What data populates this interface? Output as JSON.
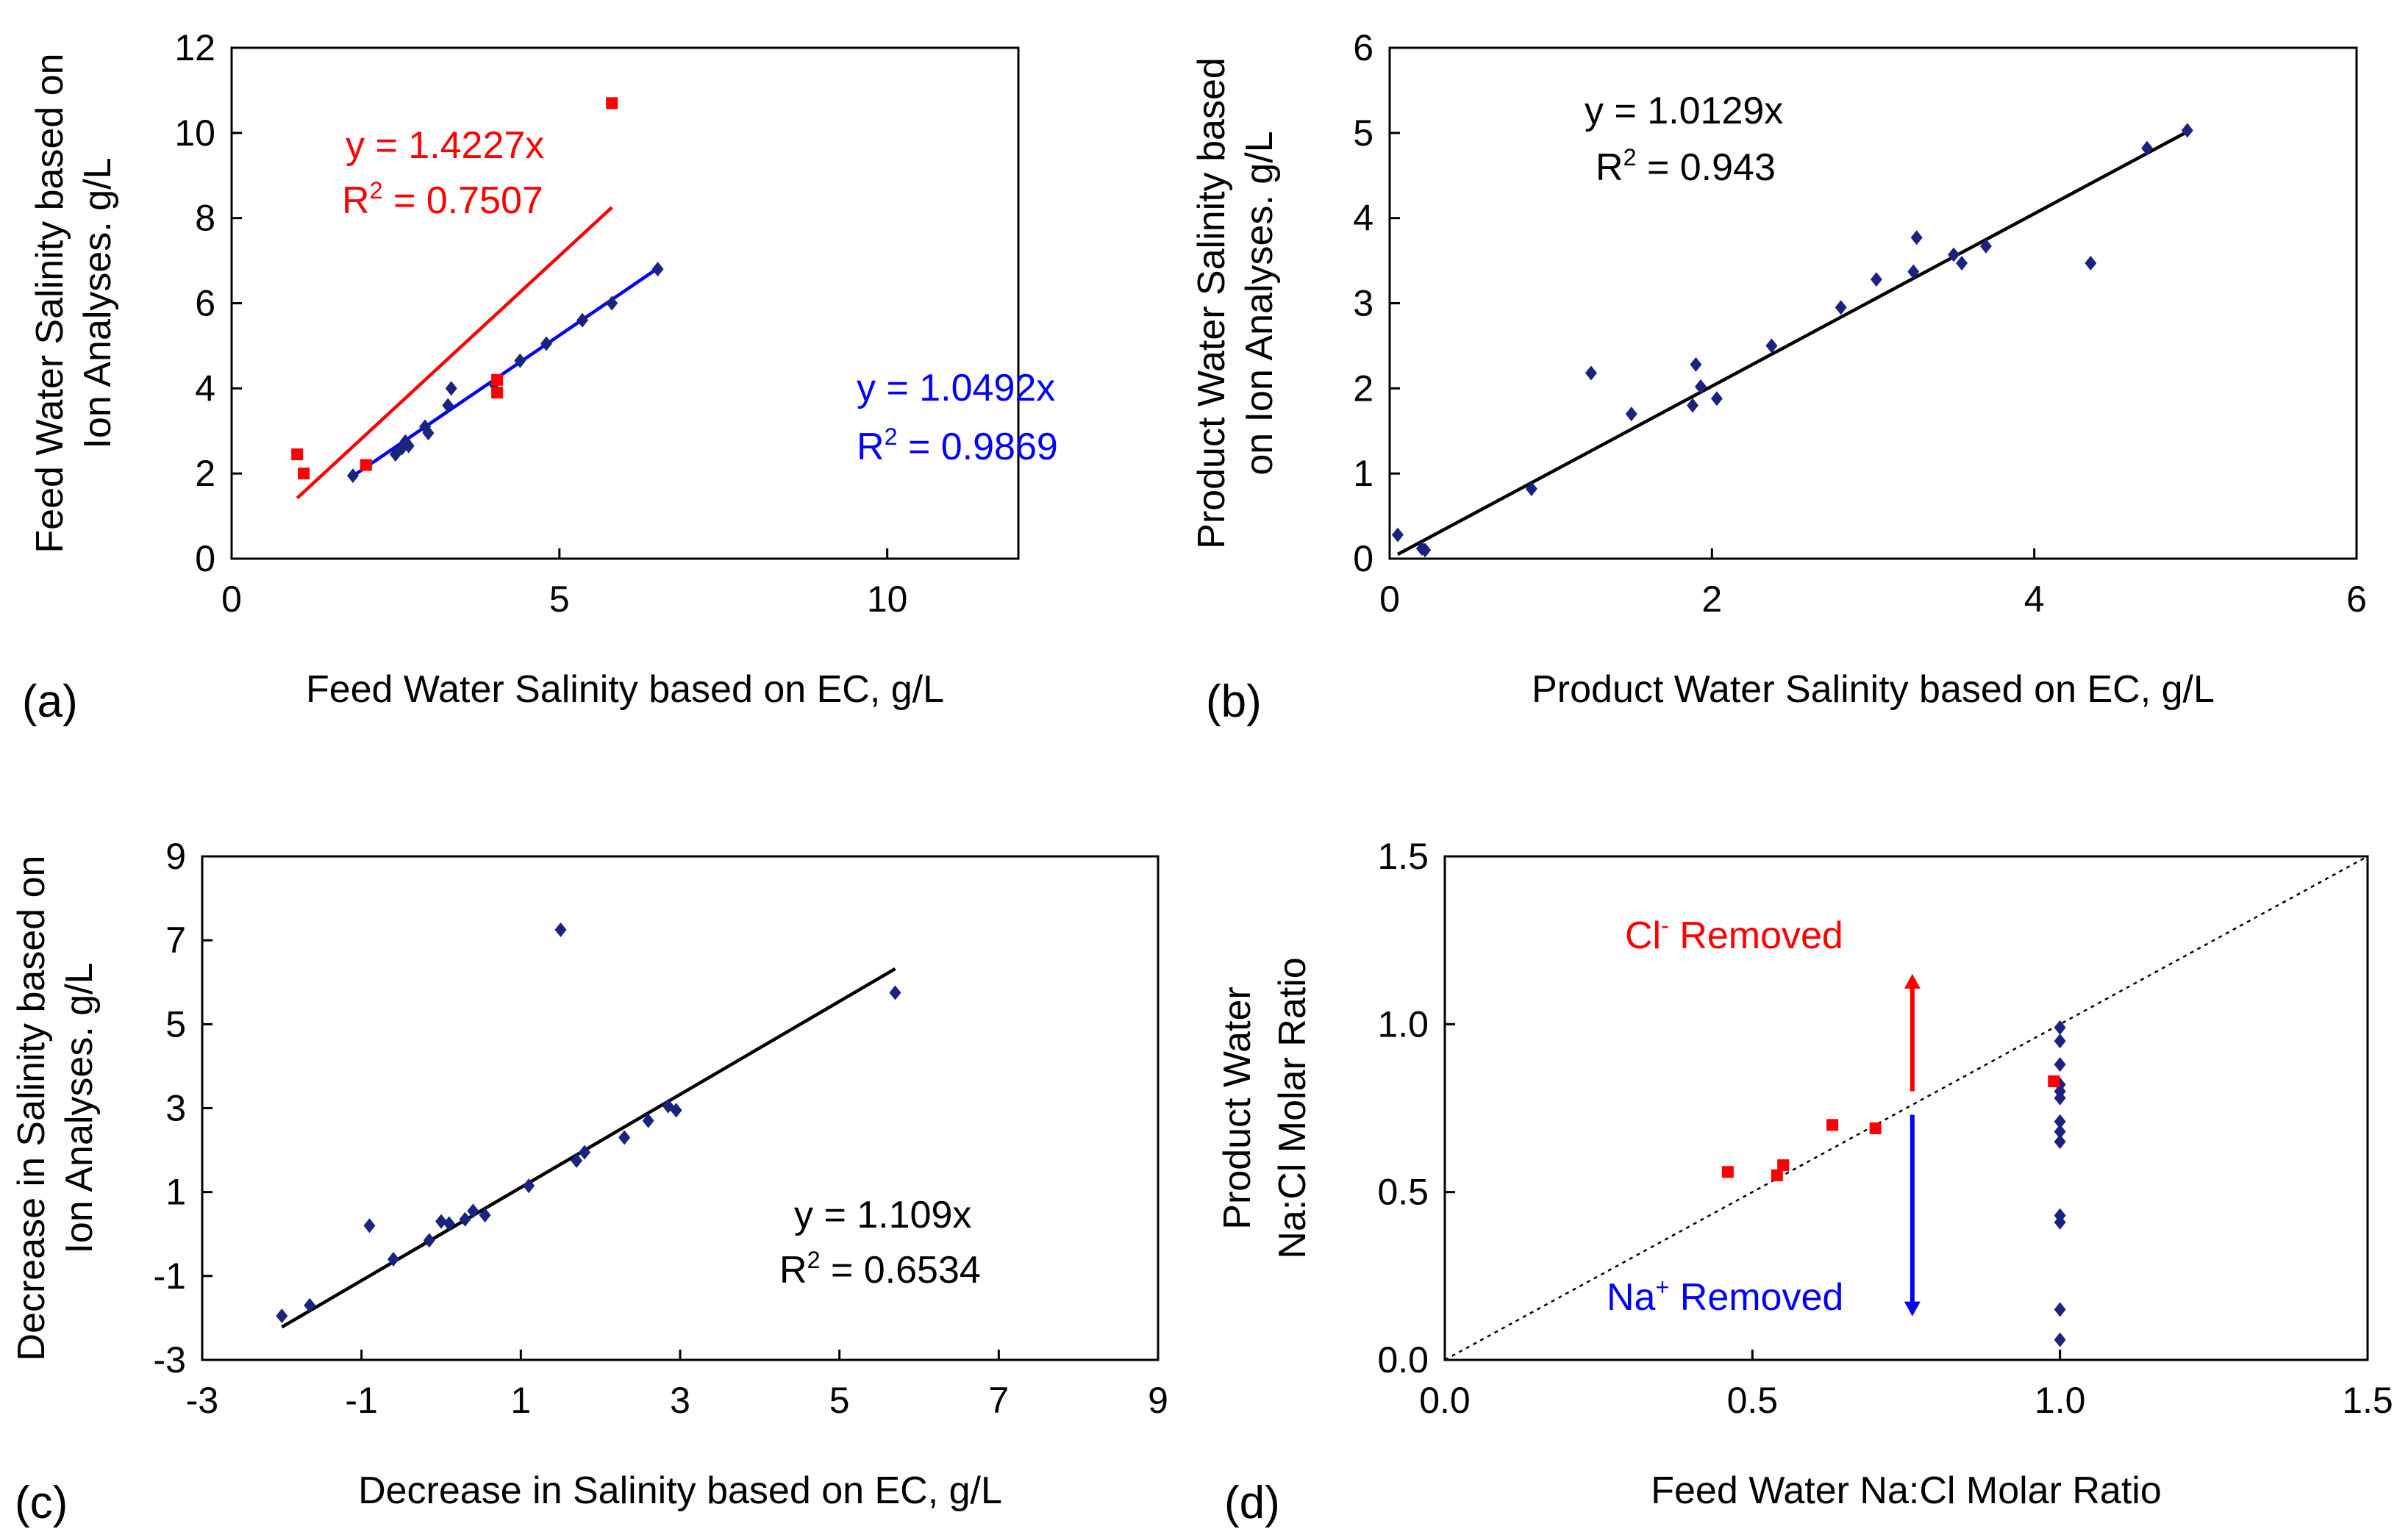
{
  "figure": {
    "layout": "2x2 grid of scatter plots"
  },
  "colors": {
    "series": "#1a237e",
    "red": "#ff0000",
    "blue": "#0000ff",
    "line": "#000000",
    "axis": "#000000"
  },
  "chart_data": [
    {
      "id": "a",
      "type": "scatter",
      "panel_label": "(a)",
      "xlabel": "Feed Water Salinity based on EC, g/L",
      "ylabel_lines": [
        "Feed Water Salinity based on",
        "Ion Analyses. g/L"
      ],
      "xlim": [
        0,
        12
      ],
      "ylim": [
        0,
        12
      ],
      "xticks": [
        0,
        5,
        10
      ],
      "yticks": [
        0,
        2,
        4,
        6,
        8,
        10,
        12
      ],
      "series": [
        {
          "name": "blue series",
          "color": "#1a237e",
          "marker": "diamond",
          "points": [
            [
              1.85,
              1.95
            ],
            [
              2.5,
              2.45
            ],
            [
              2.6,
              2.6
            ],
            [
              2.65,
              2.75
            ],
            [
              2.7,
              2.65
            ],
            [
              2.95,
              3.1
            ],
            [
              3.0,
              2.95
            ],
            [
              3.3,
              3.6
            ],
            [
              3.35,
              4.0
            ],
            [
              4.0,
              4.1
            ],
            [
              4.4,
              4.65
            ],
            [
              4.8,
              5.05
            ],
            [
              5.35,
              5.6
            ],
            [
              5.8,
              6.0
            ],
            [
              6.5,
              6.8
            ]
          ],
          "fit": {
            "slope": 1.0492,
            "x_range": [
              1.85,
              6.5
            ],
            "color": "#0000ff"
          }
        },
        {
          "name": "red series",
          "color": "#ff0000",
          "marker": "square",
          "points": [
            [
              1.0,
              2.45
            ],
            [
              1.1,
              2.0
            ],
            [
              2.05,
              2.2
            ],
            [
              4.05,
              4.2
            ],
            [
              4.05,
              3.9
            ],
            [
              5.8,
              10.7
            ]
          ],
          "fit": {
            "slope": 1.4227,
            "x_range": [
              1.0,
              5.8
            ],
            "color": "#ff0000"
          }
        }
      ],
      "annotations": [
        {
          "id": "red_eq",
          "text": "y = 1.4227x",
          "color": "#ff0000"
        },
        {
          "id": "red_r2",
          "text_prefix": "R",
          "sup": "2",
          "text_suffix": " = 0.7507",
          "color": "#ff0000"
        },
        {
          "id": "blue_eq",
          "text": "y = 1.0492x",
          "color": "#0000ff"
        },
        {
          "id": "blue_r2",
          "text_prefix": "R",
          "sup": "2",
          "text_suffix": " = 0.9869",
          "color": "#0000ff"
        }
      ]
    },
    {
      "id": "b",
      "type": "scatter",
      "panel_label": "(b)",
      "xlabel": "Product Water Salinity based on EC, g/L",
      "ylabel_lines": [
        "Product Water Salinity based",
        "on Ion Analyses. g/L"
      ],
      "xlim": [
        0,
        6
      ],
      "ylim": [
        0,
        6
      ],
      "xticks": [
        0,
        2,
        4,
        6
      ],
      "yticks": [
        0,
        1,
        2,
        3,
        4,
        5,
        6
      ],
      "series": [
        {
          "name": "data",
          "color": "#1a237e",
          "marker": "diamond",
          "points": [
            [
              0.05,
              0.28
            ],
            [
              0.2,
              0.12
            ],
            [
              0.22,
              0.1
            ],
            [
              0.88,
              0.82
            ],
            [
              1.25,
              2.18
            ],
            [
              1.5,
              1.7
            ],
            [
              1.88,
              1.8
            ],
            [
              1.9,
              2.28
            ],
            [
              1.93,
              2.02
            ],
            [
              2.03,
              1.88
            ],
            [
              2.37,
              2.5
            ],
            [
              2.8,
              2.95
            ],
            [
              3.02,
              3.28
            ],
            [
              3.25,
              3.37
            ],
            [
              3.27,
              3.77
            ],
            [
              3.5,
              3.57
            ],
            [
              3.55,
              3.47
            ],
            [
              3.7,
              3.67
            ],
            [
              4.35,
              3.47
            ],
            [
              4.7,
              4.82
            ],
            [
              4.95,
              5.03
            ]
          ],
          "fit": {
            "slope": 1.0129,
            "x_range": [
              0.05,
              4.95
            ],
            "color": "#000000"
          }
        }
      ],
      "annotations": [
        {
          "id": "eq",
          "text": "y = 1.0129x",
          "color": "#000000"
        },
        {
          "id": "r2",
          "text_prefix": "R",
          "sup": "2",
          "text_suffix": " = 0.943",
          "color": "#000000"
        }
      ]
    },
    {
      "id": "c",
      "type": "scatter",
      "panel_label": "(c)",
      "xlabel": "Decrease in Salinity based on EC, g/L",
      "ylabel_lines": [
        "Decrease in Salinity based on",
        "Ion Analyses. g/L"
      ],
      "xlim": [
        -3,
        9
      ],
      "ylim": [
        -3,
        9
      ],
      "xticks": [
        -3,
        -1,
        1,
        3,
        5,
        7,
        9
      ],
      "yticks": [
        -3,
        -1,
        1,
        3,
        5,
        7,
        9
      ],
      "series": [
        {
          "name": "data",
          "color": "#1a237e",
          "marker": "diamond",
          "points": [
            [
              -2.0,
              -1.95
            ],
            [
              -1.65,
              -1.7
            ],
            [
              -0.9,
              0.2
            ],
            [
              -0.6,
              -0.6
            ],
            [
              -0.15,
              -0.15
            ],
            [
              0.0,
              0.3
            ],
            [
              0.1,
              0.25
            ],
            [
              0.3,
              0.35
            ],
            [
              0.4,
              0.55
            ],
            [
              0.55,
              0.45
            ],
            [
              1.1,
              1.15
            ],
            [
              1.5,
              7.25
            ],
            [
              1.7,
              1.75
            ],
            [
              1.8,
              1.95
            ],
            [
              2.3,
              2.3
            ],
            [
              2.6,
              2.7
            ],
            [
              2.85,
              3.05
            ],
            [
              2.95,
              2.95
            ],
            [
              5.7,
              5.75
            ]
          ],
          "fit": {
            "slope": 1.109,
            "x_range": [
              -2.0,
              5.7
            ],
            "color": "#000000"
          }
        }
      ],
      "annotations": [
        {
          "id": "eq",
          "text": "y = 1.109x",
          "color": "#000000"
        },
        {
          "id": "r2",
          "text_prefix": "R",
          "sup": "2",
          "text_suffix": " = 0.6534",
          "color": "#000000"
        }
      ]
    },
    {
      "id": "d",
      "type": "scatter",
      "panel_label": "(d)",
      "xlabel": "Feed Water Na:Cl Molar Ratio",
      "ylabel_lines": [
        "Product Water",
        "Na:Cl Molar Ratio"
      ],
      "xlim": [
        0,
        1.5
      ],
      "ylim": [
        0,
        1.5
      ],
      "xticks": [
        0.0,
        0.5,
        1.0,
        1.5
      ],
      "yticks": [
        0.0,
        0.5,
        1.0,
        1.5
      ],
      "tick_decimals": 1,
      "series": [
        {
          "name": "blue series",
          "color": "#1a237e",
          "marker": "diamond",
          "points": [
            [
              1.0,
              0.99
            ],
            [
              1.0,
              0.95
            ],
            [
              1.0,
              0.88
            ],
            [
              1.0,
              0.82
            ],
            [
              1.0,
              0.8
            ],
            [
              1.0,
              0.78
            ],
            [
              1.0,
              0.71
            ],
            [
              1.0,
              0.68
            ],
            [
              1.0,
              0.65
            ],
            [
              1.0,
              0.43
            ],
            [
              1.0,
              0.41
            ],
            [
              1.0,
              0.15
            ],
            [
              1.0,
              0.06
            ]
          ]
        },
        {
          "name": "red series",
          "color": "#ff0000",
          "marker": "square",
          "points": [
            [
              0.46,
              0.56
            ],
            [
              0.54,
              0.55
            ],
            [
              0.55,
              0.58
            ],
            [
              0.63,
              0.7
            ],
            [
              0.7,
              0.69
            ],
            [
              0.99,
              0.83
            ]
          ]
        }
      ],
      "reference_line": {
        "type": "y=x",
        "style": "dotted",
        "color": "#000000"
      },
      "arrows": [
        {
          "x": 0.76,
          "from": 0.8,
          "to": 1.15,
          "color": "#ff0000"
        },
        {
          "x": 0.76,
          "from": 0.73,
          "to": 0.13,
          "color": "#0000ff"
        }
      ],
      "annotations": [
        {
          "id": "cl_removed",
          "text_prefix": "Cl",
          "sup": "-",
          "text_suffix": " Removed",
          "color": "#ff0000"
        },
        {
          "id": "na_removed",
          "text_prefix": "Na",
          "sup": "+",
          "text_suffix": " Removed",
          "color": "#0000ff"
        }
      ]
    }
  ]
}
